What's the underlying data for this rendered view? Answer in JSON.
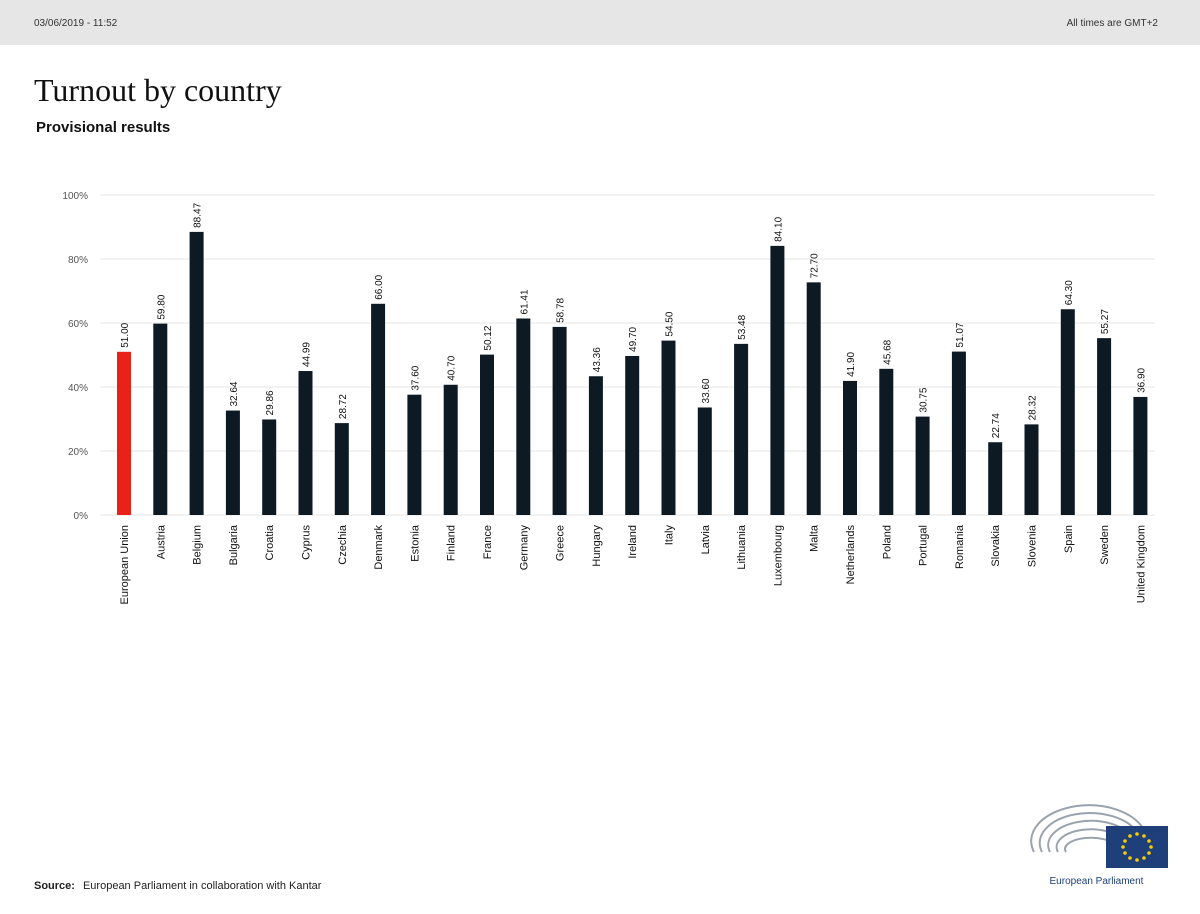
{
  "header": {
    "timestamp": "03/06/2019 - 11:52",
    "timezone_note": "All times are GMT+2"
  },
  "title": "Turnout by country",
  "subtitle": "Provisional results",
  "source": {
    "label": "Source:",
    "text": "European Parliament in collaboration with Kantar"
  },
  "logo": {
    "text": "European Parliament"
  },
  "colors": {
    "bar": "#0d1a24",
    "highlight": "#e8221b",
    "grid": "#e6e6e6"
  },
  "chart_data": {
    "type": "bar",
    "title": "Turnout by country",
    "subtitle": "Provisional results",
    "xlabel": "",
    "ylabel": "",
    "ylim": [
      0,
      100
    ],
    "yticks": [
      "0%",
      "20%",
      "40%",
      "60%",
      "80%",
      "100%"
    ],
    "grid": true,
    "highlight_index": 0,
    "categories": [
      "European Union",
      "Austria",
      "Belgium",
      "Bulgaria",
      "Croatia",
      "Cyprus",
      "Czechia",
      "Denmark",
      "Estonia",
      "Finland",
      "France",
      "Germany",
      "Greece",
      "Hungary",
      "Ireland",
      "Italy",
      "Latvia",
      "Lithuania",
      "Luxembourg",
      "Malta",
      "Netherlands",
      "Poland",
      "Portugal",
      "Romania",
      "Slovakia",
      "Slovenia",
      "Spain",
      "Sweden",
      "United Kingdom"
    ],
    "values": [
      51.0,
      59.8,
      88.47,
      32.64,
      29.86,
      44.99,
      28.72,
      66.0,
      37.6,
      40.7,
      50.12,
      61.41,
      58.78,
      43.36,
      49.7,
      54.5,
      33.6,
      53.48,
      84.1,
      72.7,
      41.9,
      45.68,
      30.75,
      51.07,
      22.74,
      28.32,
      64.3,
      55.27,
      36.9
    ],
    "labels": [
      "51.00",
      "59.80",
      "88.47",
      "32.64",
      "29.86",
      "44.99",
      "28.72",
      "66.00",
      "37.60",
      "40.70",
      "50.12",
      "61.41",
      "58.78",
      "43.36",
      "49.70",
      "54.50",
      "33.60",
      "53.48",
      "84.10",
      "72.70",
      "41.90",
      "45.68",
      "30.75",
      "51.07",
      "22.74",
      "28.32",
      "64.30",
      "55.27",
      "36.90"
    ]
  }
}
